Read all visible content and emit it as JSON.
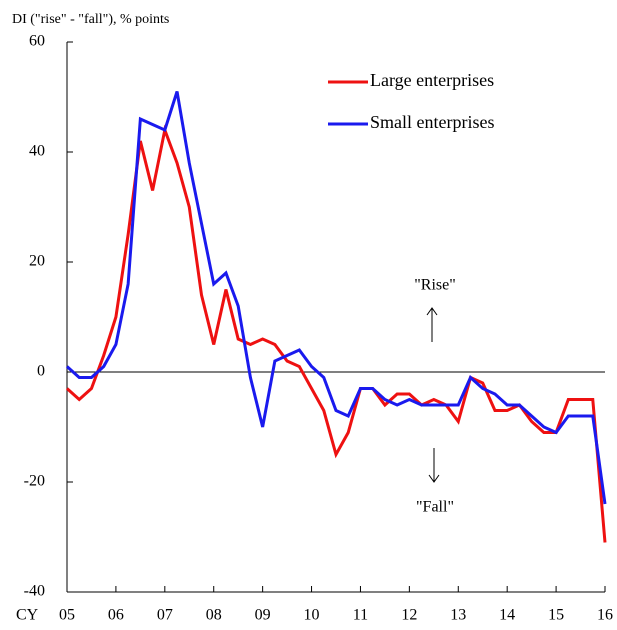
{
  "chart_data": {
    "type": "line",
    "ylabel": "DI (\"rise\" - \"fall\"), % points",
    "xlabel": "CY",
    "x": [
      2005,
      2005.25,
      2005.5,
      2005.75,
      2006,
      2006.25,
      2006.5,
      2006.75,
      2007,
      2007.25,
      2007.5,
      2007.75,
      2008,
      2008.25,
      2008.5,
      2008.75,
      2009,
      2009.25,
      2009.5,
      2009.75,
      2010,
      2010.25,
      2010.5,
      2010.75,
      2011,
      2011.25,
      2011.5,
      2011.75,
      2012,
      2012.25,
      2012.5,
      2012.75,
      2013,
      2013.25,
      2013.5,
      2013.75,
      2014,
      2014.25,
      2014.5,
      2014.75,
      2015,
      2015.25,
      2015.5,
      2015.75,
      2016
    ],
    "series": [
      {
        "name": "Large enterprises",
        "color": "#ee1111",
        "values": [
          -3,
          -5,
          -3,
          3,
          10,
          25,
          42,
          33,
          44,
          38,
          30,
          14,
          5,
          15,
          6,
          5,
          6,
          5,
          2,
          1,
          -3,
          -7,
          -15,
          -11,
          -3,
          -3,
          -6,
          -4,
          -4,
          -6,
          -5,
          -6,
          -9,
          -1,
          -2,
          -7,
          -7,
          -6,
          -9,
          -11,
          -11,
          -5,
          -5,
          -5,
          -31
        ]
      },
      {
        "name": "Small enterprises",
        "color": "#1a1aee",
        "values": [
          1,
          -1,
          -1,
          1,
          5,
          16,
          46,
          45,
          44,
          51,
          38,
          27,
          16,
          18,
          12,
          -1,
          -10,
          2,
          3,
          4,
          1,
          -1,
          -7,
          -8,
          -3,
          -3,
          -5,
          -6,
          -5,
          -6,
          -6,
          -6,
          -6,
          -1,
          -3,
          -4,
          -6,
          -6,
          -8,
          -10,
          -11,
          -8,
          -8,
          -8,
          -24
        ]
      }
    ],
    "xlim": [
      2005,
      2016
    ],
    "xticks": [
      {
        "value": 2005,
        "label": "05"
      },
      {
        "value": 2006,
        "label": "06"
      },
      {
        "value": 2007,
        "label": "07"
      },
      {
        "value": 2008,
        "label": "08"
      },
      {
        "value": 2009,
        "label": "09"
      },
      {
        "value": 2010,
        "label": "10"
      },
      {
        "value": 2011,
        "label": "11"
      },
      {
        "value": 2012,
        "label": "12"
      },
      {
        "value": 2013,
        "label": "13"
      },
      {
        "value": 2014,
        "label": "14"
      },
      {
        "value": 2015,
        "label": "15"
      },
      {
        "value": 2016,
        "label": "16"
      }
    ],
    "ylim": [
      -40,
      60
    ],
    "yticks": [
      -40,
      -20,
      0,
      20,
      40,
      60
    ],
    "legend": "upper right",
    "annotations": [
      "\"Rise\"",
      "\"Fall\""
    ]
  }
}
